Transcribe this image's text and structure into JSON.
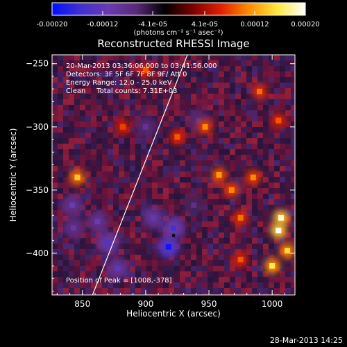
{
  "chart_data": {
    "type": "heatmap",
    "title": "Reconstructed RHESSI Image",
    "xlabel": "Heliocentric X (arcsec)",
    "ylabel": "Heliocentric Y (arcsec)",
    "xlim": [
      826,
      1018
    ],
    "ylim": [
      -433,
      -243
    ],
    "x_ticks": [
      850,
      900,
      950,
      1000
    ],
    "y_ticks": [
      -250,
      -300,
      -350,
      -400
    ],
    "colorbar": {
      "vmin": -0.0002,
      "vmax": 0.0002,
      "tick_values": [
        -0.0002,
        -0.00012,
        -4.1e-05,
        4.1e-05,
        0.00012,
        0.0002
      ],
      "tick_labels": [
        "-0.00020",
        "-0.00012",
        "-4.1e-05",
        "4.1e-05",
        "0.00012",
        "0.00020"
      ],
      "units_label": "(photons cm⁻² s⁻¹ asec⁻²)",
      "colormap": [
        "#0010ff",
        "#4030d0",
        "#6a3ab0",
        "#5a2a78",
        "#000000",
        "#7a0000",
        "#e02000",
        "#ff8c00",
        "#ffe840",
        "#ffffff"
      ]
    },
    "annotations": [
      "20-Mar-2013 03:36:06.000 to 03:41:56.000",
      "Detectors: 3F 5F 6F 7F 8F 9F/ Att 0",
      "Energy Range: 12.0 - 25.0 keV",
      "Clean     Total counts: 7.31E+03"
    ],
    "peak_label": "Position of Peak = [1008,-378]",
    "limb_line": {
      "x": [
        858,
        933
      ],
      "y": [
        -433,
        -243
      ]
    },
    "bright_sources": [
      {
        "x": 1005,
        "y": -382,
        "value": 0.0002
      },
      {
        "x": 1007,
        "y": -372,
        "value": 0.00019
      },
      {
        "x": 1000,
        "y": -410,
        "value": 0.00016
      },
      {
        "x": 1012,
        "y": -398,
        "value": 0.00015
      },
      {
        "x": 846,
        "y": -340,
        "value": 0.00014
      },
      {
        "x": 958,
        "y": -338,
        "value": 0.00012
      },
      {
        "x": 968,
        "y": -350,
        "value": 0.00011
      },
      {
        "x": 985,
        "y": -340,
        "value": 0.00011
      },
      {
        "x": 975,
        "y": -372,
        "value": 0.0001
      },
      {
        "x": 947,
        "y": -300,
        "value": 0.00011
      },
      {
        "x": 990,
        "y": -272,
        "value": 0.0001
      },
      {
        "x": 925,
        "y": -308,
        "value": 9e-05
      },
      {
        "x": 882,
        "y": -300,
        "value": 8e-05
      },
      {
        "x": 900,
        "y": -255,
        "value": 9e-05
      },
      {
        "x": 975,
        "y": -405,
        "value": 9e-05
      },
      {
        "x": 1005,
        "y": -295,
        "value": 9e-05
      }
    ],
    "dark_sources": [
      {
        "x": 918,
        "y": -395,
        "value": -0.00019
      },
      {
        "x": 922,
        "y": -380,
        "value": -0.00015
      },
      {
        "x": 906,
        "y": -372,
        "value": -0.00012
      },
      {
        "x": 870,
        "y": -392,
        "value": -0.00014
      },
      {
        "x": 878,
        "y": -412,
        "value": -0.00012
      },
      {
        "x": 862,
        "y": -375,
        "value": -0.00011
      },
      {
        "x": 842,
        "y": -362,
        "value": -0.00011
      },
      {
        "x": 843,
        "y": -380,
        "value": -0.0001
      },
      {
        "x": 900,
        "y": -300,
        "value": -9e-05
      },
      {
        "x": 942,
        "y": -295,
        "value": -9e-05
      },
      {
        "x": 938,
        "y": -362,
        "value": -8e-05
      }
    ]
  },
  "footer": {
    "date": "28-Mar-2013 14:25"
  }
}
